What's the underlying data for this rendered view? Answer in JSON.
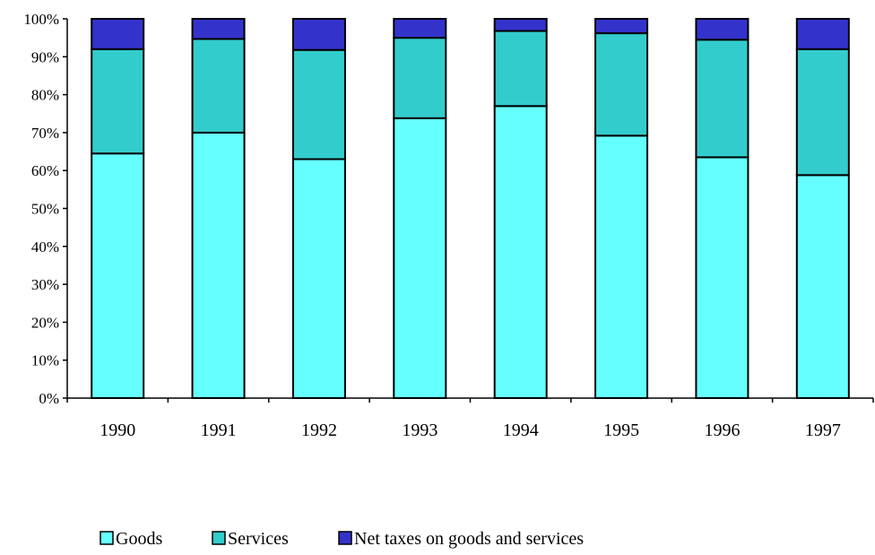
{
  "chart_data": {
    "type": "bar",
    "stacked": true,
    "percent_stacked": true,
    "categories": [
      "1990",
      "1991",
      "1992",
      "1993",
      "1994",
      "1995",
      "1996",
      "1997"
    ],
    "series": [
      {
        "name": "Goods",
        "color": "#66FFFF",
        "values": [
          64.5,
          70.0,
          63.0,
          73.8,
          77.0,
          69.2,
          63.5,
          58.8
        ]
      },
      {
        "name": "Services",
        "color": "#33CCCC",
        "values": [
          27.5,
          24.7,
          28.8,
          21.2,
          19.8,
          27.0,
          31.0,
          33.2
        ]
      },
      {
        "name": "Net taxes on goods and services",
        "color": "#3333CC",
        "values": [
          8.0,
          5.3,
          8.2,
          5.0,
          3.2,
          3.8,
          5.5,
          8.0
        ]
      }
    ],
    "yticks": [
      "0%",
      "10%",
      "20%",
      "30%",
      "40%",
      "50%",
      "60%",
      "70%",
      "80%",
      "90%",
      "100%"
    ],
    "ylim": [
      0,
      100
    ],
    "grid": false,
    "legend_position": "bottom"
  }
}
